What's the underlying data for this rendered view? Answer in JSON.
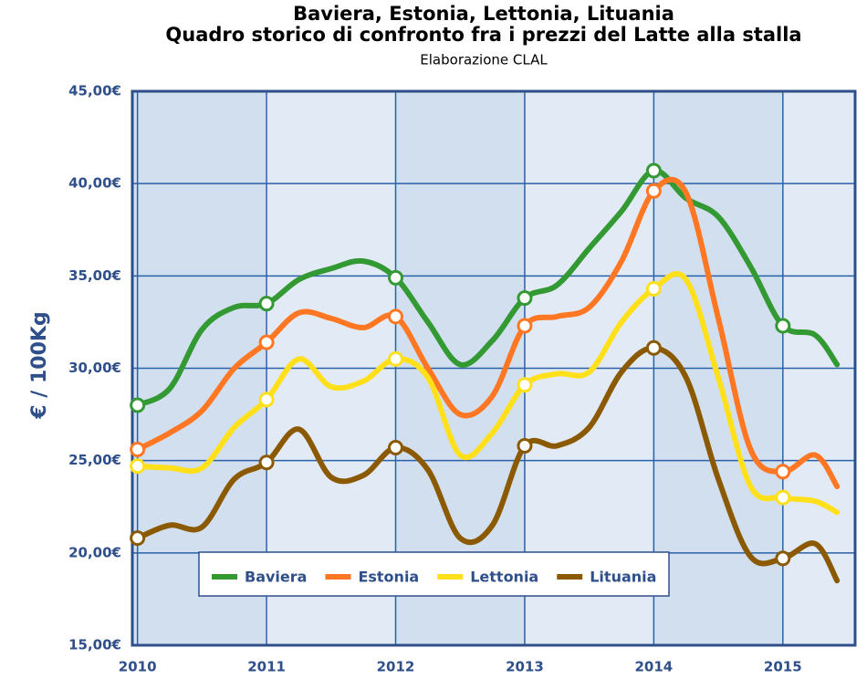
{
  "chart_data": {
    "type": "line",
    "title": "Baviera, Estonia, Lettonia, Lituania",
    "subtitle": "Quadro storico di confronto fra i prezzi del Latte alla stalla",
    "source": "Elaborazione CLAL",
    "y_label": "€ / 100Kg",
    "x": [
      2010,
      2010.25,
      2010.5,
      2010.75,
      2011,
      2011.25,
      2011.5,
      2011.75,
      2012,
      2012.25,
      2012.5,
      2012.75,
      2013,
      2013.25,
      2013.5,
      2013.75,
      2014,
      2014.25,
      2014.5,
      2014.75,
      2015,
      2015.25,
      2015.42
    ],
    "series": [
      {
        "name": "Baviera",
        "color": "#339933",
        "values": [
          28.0,
          28.9,
          32.1,
          33.3,
          33.5,
          34.8,
          35.4,
          35.8,
          34.9,
          32.5,
          30.2,
          31.5,
          33.8,
          34.5,
          36.5,
          38.5,
          40.7,
          39.2,
          38.2,
          35.5,
          32.3,
          31.8,
          30.2
        ]
      },
      {
        "name": "Estonia",
        "color": "#ff7722",
        "values": [
          25.6,
          26.5,
          27.7,
          30.0,
          31.4,
          33.0,
          32.7,
          32.2,
          32.8,
          30.0,
          27.5,
          28.5,
          32.3,
          32.8,
          33.3,
          35.8,
          39.6,
          39.5,
          32.7,
          25.6,
          24.4,
          25.3,
          23.6
        ]
      },
      {
        "name": "Lettonia",
        "color": "#ffe01a",
        "values": [
          24.7,
          24.6,
          24.6,
          26.8,
          28.3,
          30.5,
          29.0,
          29.3,
          30.5,
          29.5,
          25.3,
          26.5,
          29.1,
          29.7,
          29.8,
          32.5,
          34.3,
          34.8,
          29.5,
          23.6,
          23.0,
          22.8,
          22.2
        ]
      },
      {
        "name": "Lituania",
        "color": "#8b5a00",
        "values": [
          20.8,
          21.5,
          21.4,
          24.0,
          24.9,
          26.7,
          24.1,
          24.2,
          25.7,
          24.5,
          20.8,
          21.5,
          25.8,
          25.8,
          26.8,
          29.8,
          31.1,
          29.5,
          24.0,
          19.8,
          19.7,
          20.5,
          18.5
        ]
      }
    ],
    "xlim": [
      2009.96,
      2015.56
    ],
    "xticks": [
      2010,
      2011,
      2012,
      2013,
      2014,
      2015
    ],
    "ylim": [
      15,
      45
    ],
    "yticks": [
      {
        "value": 15,
        "label": "15,00€"
      },
      {
        "value": 20,
        "label": "20,00€"
      },
      {
        "value": 25,
        "label": "25,00€"
      },
      {
        "value": 30,
        "label": "30,00€"
      },
      {
        "value": 35,
        "label": "35,00€"
      },
      {
        "value": 40,
        "label": "40,00€"
      },
      {
        "value": 45,
        "label": "45,00€"
      }
    ],
    "grid": true,
    "legend": "bottom"
  }
}
